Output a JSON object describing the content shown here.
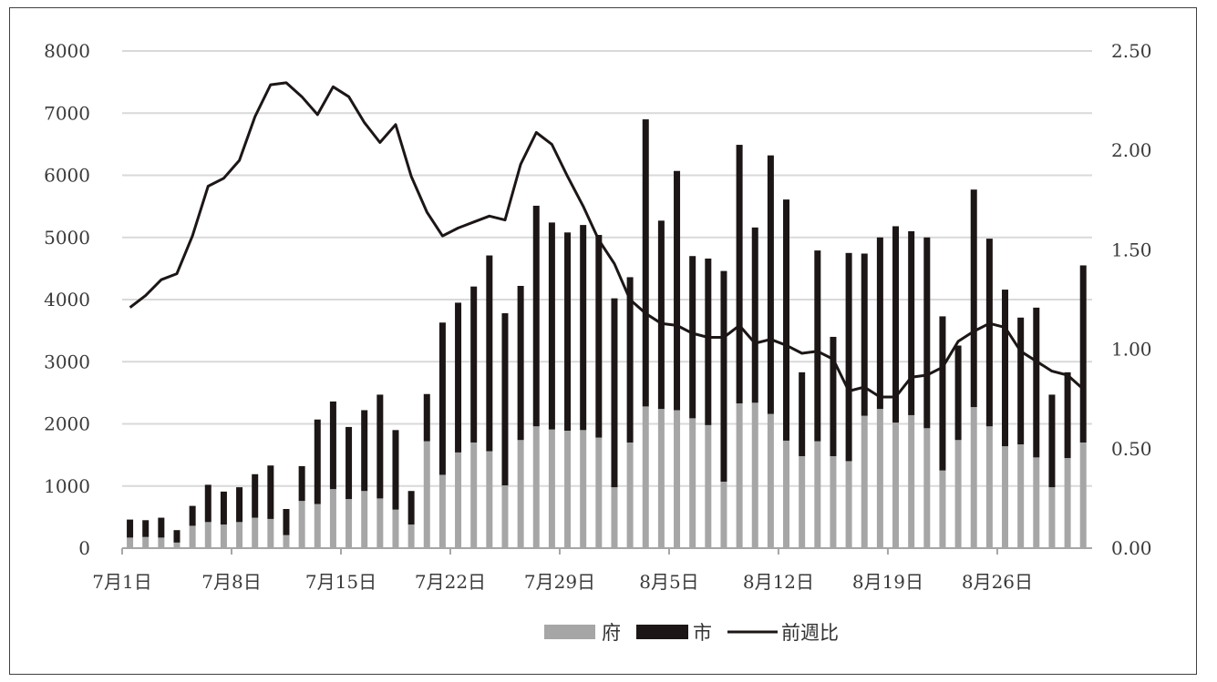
{
  "chart_data": {
    "type": "bar",
    "stacked": true,
    "grid": true,
    "legend_position": "bottom",
    "x_tick_labels": [
      "7月1日",
      "7月8日",
      "7月15日",
      "7月22日",
      "7月29日",
      "8月5日",
      "8月12日",
      "8月19日",
      "8月26日"
    ],
    "y_left": {
      "min": 0,
      "max": 8000,
      "ticks": [
        "0",
        "1000",
        "2000",
        "3000",
        "4000",
        "5000",
        "6000",
        "7000",
        "8000"
      ]
    },
    "y_right": {
      "min": 0,
      "max": 2.5,
      "ticks": [
        "0.00",
        "0.50",
        "1.00",
        "1.50",
        "2.00",
        "2.50"
      ]
    },
    "series": [
      {
        "name": "府",
        "kind": "bar",
        "axis": "left",
        "color": "#a6a6a6",
        "values": [
          170,
          180,
          170,
          90,
          360,
          420,
          380,
          420,
          490,
          470,
          210,
          760,
          710,
          950,
          790,
          920,
          800,
          620,
          380,
          1720,
          1180,
          1540,
          1700,
          1560,
          1010,
          1740,
          1960,
          1910,
          1890,
          1900,
          1780,
          980,
          1700,
          2280,
          2240,
          2220,
          2090,
          1980,
          1070,
          2330,
          2340,
          2160,
          1730,
          1480,
          1720,
          1480,
          1400,
          2130,
          2240,
          2020,
          2140,
          1930,
          1250,
          1740,
          2270,
          1960,
          1640,
          1670,
          1460,
          980,
          1450,
          1700
        ]
      },
      {
        "name": "市",
        "kind": "bar",
        "axis": "left",
        "color": "#1c1616",
        "values": [
          290,
          270,
          320,
          200,
          320,
          600,
          530,
          560,
          700,
          860,
          420,
          560,
          1360,
          1410,
          1160,
          1300,
          1670,
          1280,
          540,
          760,
          2450,
          2410,
          2510,
          3150,
          2770,
          2480,
          3550,
          3330,
          3190,
          3300,
          3260,
          3040,
          2660,
          4620,
          3030,
          3850,
          2610,
          2680,
          3390,
          4160,
          2820,
          4160,
          3880,
          1350,
          3070,
          1920,
          3350,
          2610,
          2760,
          3160,
          2960,
          3070,
          2480,
          1520,
          3500,
          3020,
          2520,
          2040,
          2410,
          1490,
          1380,
          2850
        ]
      },
      {
        "name": "前週比",
        "kind": "line",
        "axis": "right",
        "color": "#1c1616",
        "values": [
          1.21,
          1.27,
          1.35,
          1.38,
          1.57,
          1.82,
          1.86,
          1.95,
          2.17,
          2.33,
          2.34,
          2.27,
          2.18,
          2.32,
          2.27,
          2.14,
          2.04,
          2.13,
          1.87,
          1.69,
          1.57,
          1.61,
          1.64,
          1.67,
          1.65,
          1.93,
          2.09,
          2.03,
          1.87,
          1.72,
          1.55,
          1.43,
          1.25,
          1.18,
          1.13,
          1.12,
          1.08,
          1.06,
          1.06,
          1.12,
          1.03,
          1.05,
          1.02,
          0.98,
          0.99,
          0.95,
          0.79,
          0.81,
          0.76,
          0.76,
          0.86,
          0.87,
          0.91,
          1.04,
          1.09,
          1.13,
          1.11,
          0.99,
          0.94,
          0.89,
          0.87,
          0.8
        ]
      }
    ]
  }
}
